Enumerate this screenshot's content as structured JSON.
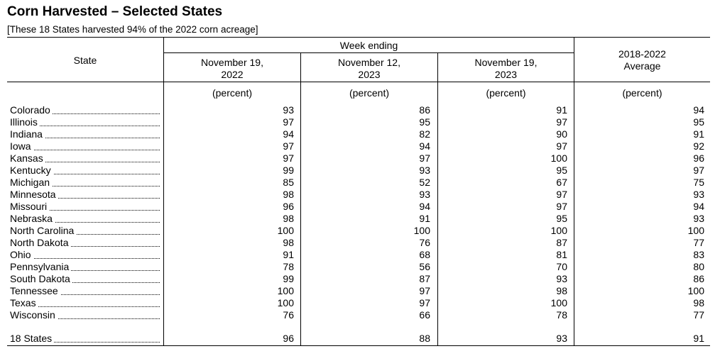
{
  "title": "Corn Harvested – Selected States",
  "subtitle": "[These 18 States harvested 94% of the 2022 corn acreage]",
  "headers": {
    "state": "State",
    "week_ending": "Week ending",
    "col1_line1": "November 19,",
    "col1_line2": "2022",
    "col2_line1": "November 12,",
    "col2_line2": "2023",
    "col3_line1": "November 19,",
    "col3_line2": "2023",
    "col4_line1": "2018-2022",
    "col4_line2": "Average"
  },
  "unit": "(percent)",
  "rows": [
    {
      "state": "Colorado",
      "values": [
        "93",
        "86",
        "91",
        "94"
      ]
    },
    {
      "state": "Illinois",
      "values": [
        "97",
        "95",
        "97",
        "95"
      ]
    },
    {
      "state": "Indiana",
      "values": [
        "94",
        "82",
        "90",
        "91"
      ]
    },
    {
      "state": "Iowa",
      "values": [
        "97",
        "94",
        "97",
        "92"
      ]
    },
    {
      "state": "Kansas",
      "values": [
        "97",
        "97",
        "100",
        "96"
      ]
    },
    {
      "state": "Kentucky",
      "values": [
        "99",
        "93",
        "95",
        "97"
      ]
    },
    {
      "state": "Michigan",
      "values": [
        "85",
        "52",
        "67",
        "75"
      ]
    },
    {
      "state": "Minnesota",
      "values": [
        "98",
        "93",
        "97",
        "93"
      ]
    },
    {
      "state": "Missouri",
      "values": [
        "96",
        "94",
        "97",
        "94"
      ]
    },
    {
      "state": "Nebraska",
      "values": [
        "98",
        "91",
        "95",
        "93"
      ]
    },
    {
      "state": "North Carolina",
      "values": [
        "100",
        "100",
        "100",
        "100"
      ]
    },
    {
      "state": "North Dakota",
      "values": [
        "98",
        "76",
        "87",
        "77"
      ]
    },
    {
      "state": "Ohio",
      "values": [
        "91",
        "68",
        "81",
        "83"
      ]
    },
    {
      "state": "Pennsylvania",
      "values": [
        "78",
        "56",
        "70",
        "80"
      ]
    },
    {
      "state": "South Dakota",
      "values": [
        "99",
        "87",
        "93",
        "86"
      ]
    },
    {
      "state": "Tennessee",
      "values": [
        "100",
        "97",
        "98",
        "100"
      ]
    },
    {
      "state": "Texas",
      "values": [
        "100",
        "97",
        "100",
        "98"
      ]
    },
    {
      "state": "Wisconsin",
      "values": [
        "76",
        "66",
        "78",
        "77"
      ]
    }
  ],
  "total": {
    "state": "18 States",
    "values": [
      "96",
      "88",
      "93",
      "91"
    ]
  }
}
